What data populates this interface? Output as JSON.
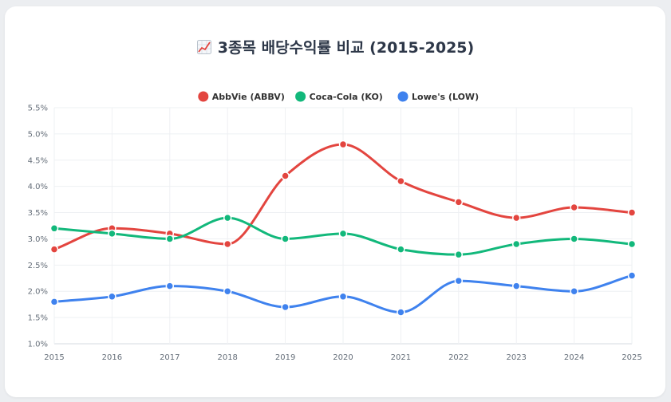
{
  "title": "3종목 배당수익률 비교 (2015-2025)",
  "title_icon": "chart-increasing-icon",
  "chart_data": {
    "type": "line",
    "title": "3종목 배당수익률 비교 (2015-2025)",
    "x": [
      "2015",
      "2016",
      "2017",
      "2018",
      "2019",
      "2020",
      "2021",
      "2022",
      "2023",
      "2024",
      "2025"
    ],
    "ylim": [
      1.0,
      5.5
    ],
    "yticks": [
      1.0,
      1.5,
      2.0,
      2.5,
      3.0,
      3.5,
      4.0,
      4.5,
      5.0,
      5.5
    ],
    "ytick_labels": [
      "1.0%",
      "1.5%",
      "2.0%",
      "2.5%",
      "3.0%",
      "3.5%",
      "4.0%",
      "4.5%",
      "5.0%",
      "5.5%"
    ],
    "legend_position": "top-center",
    "grid": true,
    "series": [
      {
        "name": "AbbVie (ABBV)",
        "color": "#e3453f",
        "values": [
          2.8,
          3.2,
          3.1,
          2.9,
          4.2,
          4.8,
          4.1,
          3.7,
          3.4,
          3.6,
          3.5
        ]
      },
      {
        "name": "Coca-Cola (KO)",
        "color": "#12b87b",
        "values": [
          3.2,
          3.1,
          3.0,
          3.4,
          3.0,
          3.1,
          2.8,
          2.7,
          2.9,
          3.0,
          2.9
        ]
      },
      {
        "name": "Lowe's (LOW)",
        "color": "#3f82ee",
        "values": [
          1.8,
          1.9,
          2.1,
          2.0,
          1.7,
          1.9,
          1.6,
          2.2,
          2.1,
          2.0,
          2.3
        ]
      }
    ]
  }
}
